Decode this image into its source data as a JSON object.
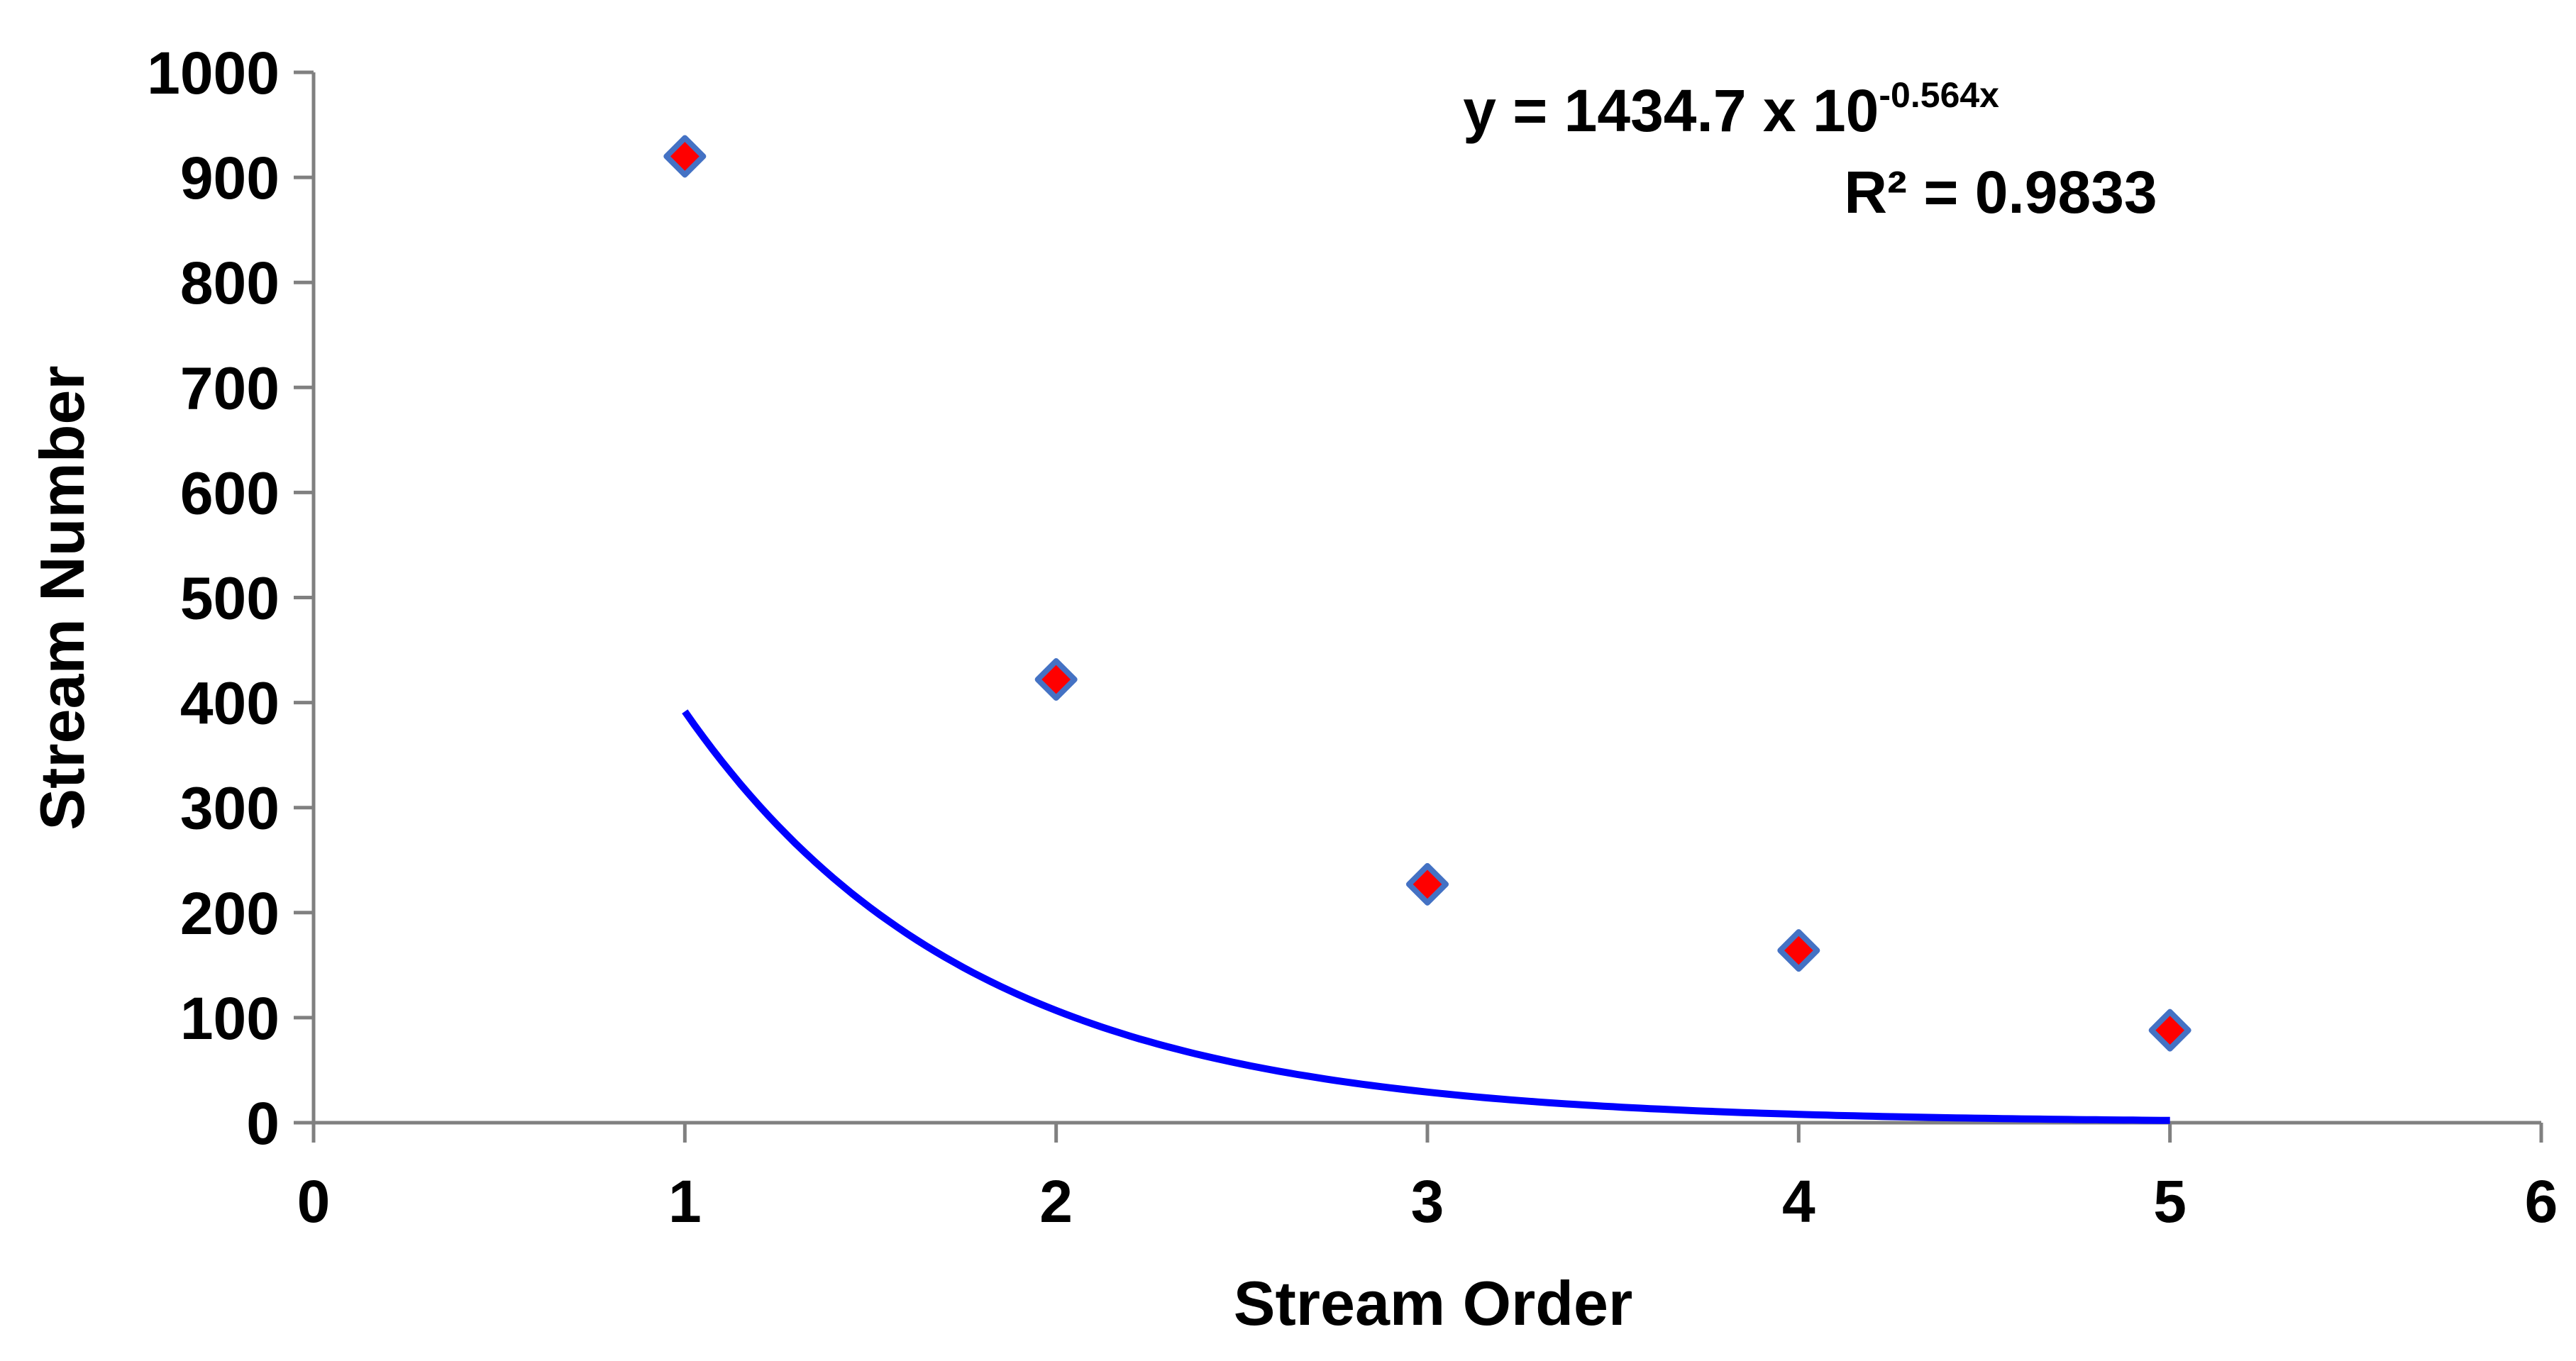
{
  "colors": {
    "axis": "#808080",
    "trendline": "#0000ff",
    "marker_fill": "#ff0000",
    "marker_stroke": "#4472c4",
    "text": "#000000"
  },
  "chart_data": {
    "type": "scatter",
    "title": "",
    "xlabel": "Stream Order",
    "ylabel": "Stream Number",
    "xlim": [
      0,
      6
    ],
    "ylim": [
      0,
      1000
    ],
    "xticks": [
      0,
      1,
      2,
      3,
      4,
      5,
      6
    ],
    "yticks": [
      0,
      100,
      200,
      300,
      400,
      500,
      600,
      700,
      800,
      900,
      1000
    ],
    "grid": false,
    "legend": "none",
    "marker": "diamond",
    "series": [
      {
        "x": [
          1,
          2,
          3,
          4,
          5
        ],
        "values": [
          920,
          422,
          227,
          164,
          88
        ]
      }
    ],
    "trendline": {
      "type": "exponential",
      "coefficient": 1434.7,
      "base": 10,
      "exponent_slope": -0.564,
      "x_range": [
        1,
        5
      ],
      "equation_prefix": "y = 1434.7 x 10",
      "equation_exponent": "-0.564x",
      "r_squared_label": "R² = 0.9833"
    }
  }
}
